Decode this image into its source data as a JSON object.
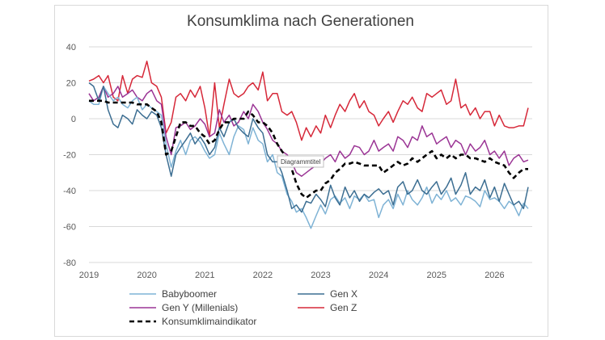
{
  "chart_data": {
    "type": "line",
    "title": "Konsumklima nach Generationen",
    "tooltip": "Diagrammtitel",
    "xlim": [
      2019.0,
      2026.65
    ],
    "ylim": [
      -80,
      40
    ],
    "yticks": [
      40,
      20,
      0,
      -20,
      -40,
      -60,
      -80
    ],
    "xticks": [
      "2019",
      "2020",
      "2021",
      "2022",
      "2023",
      "2024",
      "2025",
      "2026"
    ],
    "grid": "horizontal",
    "legend_position": "bottom",
    "colors": {
      "babyboomer": "#7fb3d5",
      "genx": "#3c6e92",
      "geny": "#9b3595",
      "genz": "#d62839",
      "index": "#000000"
    },
    "series": [
      {
        "name": "Babyboomer",
        "key": "babyboomer",
        "x": [
          2019.0,
          2019.08,
          2019.17,
          2019.25,
          2019.33,
          2019.42,
          2019.5,
          2019.58,
          2019.67,
          2019.75,
          2019.83,
          2019.92,
          2020.0,
          2020.08,
          2020.17,
          2020.25,
          2020.33,
          2020.42,
          2020.5,
          2020.58,
          2020.67,
          2020.75,
          2020.83,
          2020.92,
          2021.0,
          2021.08,
          2021.17,
          2021.25,
          2021.33,
          2021.42,
          2021.5,
          2021.58,
          2021.67,
          2021.75,
          2021.83,
          2021.92,
          2022.0,
          2022.08,
          2022.17,
          2022.25,
          2022.33,
          2022.42,
          2022.5,
          2022.58,
          2022.67,
          2022.75,
          2022.83,
          2022.92,
          2023.0,
          2023.08,
          2023.17,
          2023.25,
          2023.33,
          2023.42,
          2023.5,
          2023.58,
          2023.67,
          2023.75,
          2023.83,
          2023.92,
          2024.0,
          2024.08,
          2024.17,
          2024.25,
          2024.33,
          2024.42,
          2024.5,
          2024.58,
          2024.67,
          2024.75,
          2024.83,
          2024.92,
          2025.0,
          2025.08,
          2025.17,
          2025.25,
          2025.33,
          2025.42,
          2025.5,
          2025.58,
          2025.67,
          2025.75,
          2025.83,
          2025.92,
          2026.0,
          2026.08,
          2026.17,
          2026.25,
          2026.33,
          2026.42,
          2026.5,
          2026.58
        ],
        "values": [
          10,
          8,
          8,
          18,
          14,
          10,
          12,
          8,
          6,
          10,
          12,
          5,
          8,
          6,
          4,
          2,
          -14,
          -27,
          -18,
          -12,
          -20,
          -12,
          -10,
          -13,
          -18,
          -22,
          -20,
          -8,
          -14,
          -20,
          -10,
          -4,
          -6,
          -14,
          -5,
          -12,
          -14,
          -24,
          -20,
          -30,
          -32,
          -42,
          -46,
          -52,
          -50,
          -55,
          -61,
          -54,
          -48,
          -53,
          -45,
          -43,
          -47,
          -44,
          -50,
          -43,
          -45,
          -42,
          -46,
          -45,
          -55,
          -48,
          -45,
          -50,
          -42,
          -48,
          -40,
          -45,
          -48,
          -44,
          -38,
          -47,
          -42,
          -45,
          -40,
          -46,
          -44,
          -48,
          -43,
          -44,
          -46,
          -49,
          -40,
          -45,
          -44,
          -46,
          -50,
          -46,
          -48,
          -54,
          -47,
          -50
        ]
      },
      {
        "name": "Gen X",
        "key": "genx",
        "x": [
          2019.0,
          2019.08,
          2019.17,
          2019.25,
          2019.33,
          2019.42,
          2019.5,
          2019.58,
          2019.67,
          2019.75,
          2019.83,
          2019.92,
          2020.0,
          2020.08,
          2020.17,
          2020.25,
          2020.33,
          2020.42,
          2020.5,
          2020.58,
          2020.67,
          2020.75,
          2020.83,
          2020.92,
          2021.0,
          2021.08,
          2021.17,
          2021.25,
          2021.33,
          2021.42,
          2021.5,
          2021.58,
          2021.67,
          2021.75,
          2021.83,
          2021.92,
          2022.0,
          2022.08,
          2022.17,
          2022.25,
          2022.33,
          2022.42,
          2022.5,
          2022.58,
          2022.67,
          2022.75,
          2022.83,
          2022.92,
          2023.0,
          2023.08,
          2023.17,
          2023.25,
          2023.33,
          2023.42,
          2023.5,
          2023.58,
          2023.67,
          2023.75,
          2023.83,
          2023.92,
          2024.0,
          2024.08,
          2024.17,
          2024.25,
          2024.33,
          2024.42,
          2024.5,
          2024.58,
          2024.67,
          2024.75,
          2024.83,
          2024.92,
          2025.0,
          2025.08,
          2025.17,
          2025.25,
          2025.33,
          2025.42,
          2025.5,
          2025.58,
          2025.67,
          2025.75,
          2025.83,
          2025.92,
          2026.0,
          2026.08,
          2026.17,
          2026.25,
          2026.33,
          2026.42,
          2026.5,
          2026.58
        ],
        "values": [
          20,
          18,
          10,
          18,
          5,
          -3,
          -5,
          2,
          0,
          -3,
          5,
          2,
          0,
          4,
          2,
          -5,
          -20,
          -32,
          -20,
          -16,
          -12,
          -8,
          -14,
          -10,
          -14,
          -20,
          -16,
          -5,
          -10,
          -2,
          0,
          -5,
          -8,
          -10,
          0,
          -5,
          -8,
          -20,
          -24,
          -24,
          -30,
          -40,
          -50,
          -48,
          -52,
          -46,
          -47,
          -42,
          -45,
          -49,
          -37,
          -44,
          -48,
          -38,
          -44,
          -40,
          -46,
          -42,
          -44,
          -41,
          -39,
          -42,
          -40,
          -48,
          -38,
          -35,
          -42,
          -40,
          -34,
          -40,
          -42,
          -38,
          -35,
          -42,
          -38,
          -33,
          -42,
          -37,
          -30,
          -42,
          -38,
          -40,
          -34,
          -44,
          -38,
          -46,
          -36,
          -42,
          -48,
          -46,
          -50,
          -38
        ]
      },
      {
        "name": "Gen Y (Millenials)",
        "key": "geny",
        "x": [
          2019.0,
          2019.08,
          2019.17,
          2019.25,
          2019.33,
          2019.42,
          2019.5,
          2019.58,
          2019.67,
          2019.75,
          2019.83,
          2019.92,
          2020.0,
          2020.08,
          2020.17,
          2020.25,
          2020.33,
          2020.42,
          2020.5,
          2020.58,
          2020.67,
          2020.75,
          2020.83,
          2020.92,
          2021.0,
          2021.08,
          2021.17,
          2021.25,
          2021.33,
          2021.42,
          2021.5,
          2021.58,
          2021.67,
          2021.75,
          2021.83,
          2021.92,
          2022.0,
          2022.08,
          2022.17,
          2022.25,
          2022.33,
          2022.42,
          2022.5,
          2022.58,
          2022.67,
          2022.75,
          2022.83,
          2022.92,
          2023.0,
          2023.08,
          2023.17,
          2023.25,
          2023.33,
          2023.42,
          2023.5,
          2023.58,
          2023.67,
          2023.75,
          2023.83,
          2023.92,
          2024.0,
          2024.08,
          2024.17,
          2024.25,
          2024.33,
          2024.42,
          2024.5,
          2024.58,
          2024.67,
          2024.75,
          2024.83,
          2024.92,
          2025.0,
          2025.08,
          2025.17,
          2025.25,
          2025.33,
          2025.42,
          2025.5,
          2025.58,
          2025.67,
          2025.75,
          2025.83,
          2025.92,
          2026.0,
          2026.08,
          2026.17,
          2026.25,
          2026.33,
          2026.42,
          2026.5,
          2026.58
        ],
        "values": [
          14,
          10,
          12,
          18,
          12,
          14,
          18,
          12,
          14,
          16,
          12,
          10,
          14,
          16,
          10,
          8,
          -10,
          -20,
          -5,
          -4,
          -2,
          -6,
          -4,
          0,
          -3,
          -10,
          -8,
          5,
          -2,
          2,
          -4,
          -2,
          4,
          0,
          8,
          4,
          -2,
          -6,
          -12,
          -14,
          -18,
          -20,
          -24,
          -30,
          -32,
          -30,
          -28,
          -26,
          -25,
          -22,
          -20,
          -24,
          -18,
          -22,
          -20,
          -15,
          -16,
          -20,
          -18,
          -12,
          -18,
          -16,
          -14,
          -18,
          -10,
          -12,
          -16,
          -10,
          -12,
          -4,
          -10,
          -8,
          -14,
          -12,
          -10,
          -16,
          -12,
          -14,
          -20,
          -14,
          -18,
          -16,
          -12,
          -20,
          -18,
          -22,
          -18,
          -26,
          -22,
          -20,
          -24,
          -23
        ]
      },
      {
        "name": "Gen Z",
        "key": "genz",
        "x": [
          2019.0,
          2019.08,
          2019.17,
          2019.25,
          2019.33,
          2019.42,
          2019.5,
          2019.58,
          2019.67,
          2019.75,
          2019.83,
          2019.92,
          2020.0,
          2020.08,
          2020.17,
          2020.25,
          2020.33,
          2020.42,
          2020.5,
          2020.58,
          2020.67,
          2020.75,
          2020.83,
          2020.92,
          2021.0,
          2021.08,
          2021.17,
          2021.25,
          2021.33,
          2021.42,
          2021.5,
          2021.58,
          2021.67,
          2021.75,
          2021.83,
          2021.92,
          2022.0,
          2022.08,
          2022.17,
          2022.25,
          2022.33,
          2022.42,
          2022.5,
          2022.58,
          2022.67,
          2022.75,
          2022.83,
          2022.92,
          2023.0,
          2023.08,
          2023.17,
          2023.25,
          2023.33,
          2023.42,
          2023.5,
          2023.58,
          2023.67,
          2023.75,
          2023.83,
          2023.92,
          2024.0,
          2024.08,
          2024.17,
          2024.25,
          2024.33,
          2024.42,
          2024.5,
          2024.58,
          2024.67,
          2024.75,
          2024.83,
          2024.92,
          2025.0,
          2025.08,
          2025.17,
          2025.25,
          2025.33,
          2025.42,
          2025.5,
          2025.58,
          2025.67,
          2025.75,
          2025.83,
          2025.92,
          2026.0,
          2026.08,
          2026.17,
          2026.25,
          2026.33,
          2026.42,
          2026.5,
          2026.58
        ],
        "values": [
          21,
          22,
          24,
          20,
          24,
          12,
          10,
          24,
          14,
          22,
          24,
          23,
          32,
          20,
          18,
          12,
          -8,
          -2,
          12,
          14,
          10,
          16,
          12,
          18,
          6,
          -10,
          20,
          -5,
          8,
          22,
          14,
          12,
          14,
          18,
          20,
          16,
          26,
          10,
          14,
          14,
          4,
          2,
          4,
          -2,
          -12,
          -5,
          -10,
          -4,
          -8,
          2,
          -5,
          2,
          8,
          4,
          10,
          14,
          6,
          10,
          4,
          2,
          -4,
          0,
          4,
          -2,
          4,
          10,
          8,
          12,
          6,
          4,
          14,
          12,
          14,
          16,
          8,
          10,
          22,
          6,
          8,
          2,
          6,
          0,
          4,
          4,
          -4,
          2,
          -4,
          -5,
          -5,
          -4,
          -4,
          6
        ]
      },
      {
        "name": "Konsumklimaindikator",
        "key": "index",
        "x": [
          2019.0,
          2019.08,
          2019.17,
          2019.25,
          2019.33,
          2019.42,
          2019.5,
          2019.58,
          2019.67,
          2019.75,
          2019.83,
          2019.92,
          2020.0,
          2020.08,
          2020.17,
          2020.25,
          2020.33,
          2020.42,
          2020.5,
          2020.58,
          2020.67,
          2020.75,
          2020.83,
          2020.92,
          2021.0,
          2021.08,
          2021.17,
          2021.25,
          2021.33,
          2021.42,
          2021.5,
          2021.58,
          2021.67,
          2021.75,
          2021.83,
          2021.92,
          2022.0,
          2022.08,
          2022.17,
          2022.25,
          2022.33,
          2022.42,
          2022.5,
          2022.58,
          2022.67,
          2022.75,
          2022.83,
          2022.92,
          2023.0,
          2023.08,
          2023.17,
          2023.25,
          2023.33,
          2023.42,
          2023.5,
          2023.58,
          2023.67,
          2023.75,
          2023.83,
          2023.92,
          2024.0,
          2024.08,
          2024.17,
          2024.25,
          2024.33,
          2024.42,
          2024.5,
          2024.58,
          2024.67,
          2024.75,
          2024.83,
          2024.92,
          2025.0,
          2025.08,
          2025.17,
          2025.25,
          2025.33,
          2025.42,
          2025.5,
          2025.58,
          2025.67,
          2025.75,
          2025.83,
          2025.92,
          2026.0,
          2026.08,
          2026.17,
          2026.25,
          2026.33,
          2026.42,
          2026.5,
          2026.58
        ],
        "values": [
          10,
          10,
          10,
          10,
          9,
          9,
          9,
          9,
          9,
          9,
          8,
          8,
          8,
          6,
          4,
          -2,
          -20,
          -18,
          -10,
          -2,
          -2,
          -4,
          -4,
          -8,
          -10,
          -14,
          -12,
          -6,
          -2,
          -2,
          0,
          0,
          0,
          4,
          2,
          -2,
          -2,
          -4,
          -8,
          -14,
          -18,
          -22,
          -28,
          -36,
          -42,
          -44,
          -42,
          -40,
          -40,
          -36,
          -34,
          -30,
          -28,
          -25,
          -25,
          -24,
          -25,
          -26,
          -26,
          -26,
          -26,
          -30,
          -28,
          -26,
          -24,
          -26,
          -25,
          -22,
          -24,
          -22,
          -20,
          -18,
          -22,
          -20,
          -22,
          -20,
          -22,
          -20,
          -20,
          -22,
          -22,
          -23,
          -24,
          -22,
          -24,
          -25,
          -26,
          -30,
          -33,
          -30,
          -28,
          -28
        ]
      }
    ]
  }
}
